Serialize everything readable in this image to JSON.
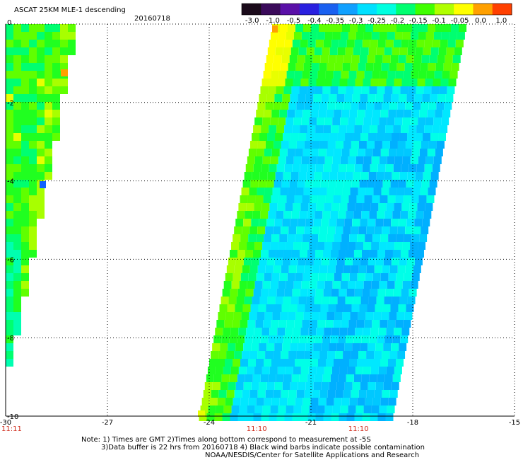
{
  "title": "ASCAT 25KM MLE-1 descending",
  "date": "20160718",
  "colorbar": {
    "labels": [
      "-3.0",
      "-1.0",
      "-0.5",
      "-0.4",
      "-0.35",
      "-0.3",
      "-0.25",
      "-0.2",
      "-0.15",
      "-0.1",
      "-0.05",
      "0.0",
      "1.0"
    ],
    "colors": [
      "#1a0a1a",
      "#3a0a5a",
      "#5a10a8",
      "#2a20e0",
      "#1a60f0",
      "#10a0ff",
      "#00e0ff",
      "#00ffe0",
      "#00ff70",
      "#40ff00",
      "#b0ff00",
      "#ffff00",
      "#ffa000",
      "#ff4000"
    ]
  },
  "axes": {
    "x_ticks": [
      "-30",
      "-27",
      "-24",
      "-21",
      "-18",
      "-15"
    ],
    "y_ticks": [
      "0",
      "-2",
      "-4",
      "-6",
      "-8",
      "-10"
    ],
    "x_range": [
      -30,
      -15
    ],
    "y_range": [
      0,
      -10
    ]
  },
  "times": [
    {
      "label": "11:11",
      "lon": -30
    },
    {
      "label": "11:10",
      "lon": -22.6
    },
    {
      "label": "11:10",
      "lon": -19.6
    }
  ],
  "notes": [
    "Note: 1) Times are GMT 2)Times along bottom correspond to measurement at -5S",
    "3)Data buffer is 22 hrs from 20160718 4) Black wind barbs indicate possible contamination",
    "NOAA/NESDIS/Center for Satellite Applications and Research"
  ]
}
